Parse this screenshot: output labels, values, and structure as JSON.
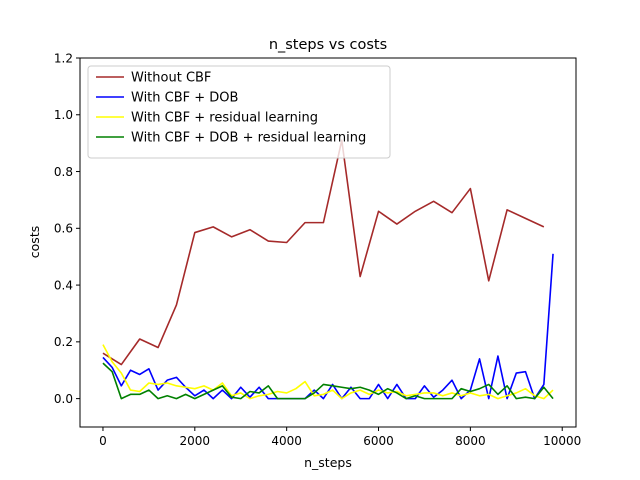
{
  "chart_data": {
    "type": "line",
    "title": "n_steps vs costs",
    "xlabel": "n_steps",
    "ylabel": "costs",
    "xlim": [
      -500,
      10300
    ],
    "ylim": [
      -0.1,
      1.2
    ],
    "xticks": [
      0,
      2000,
      4000,
      6000,
      8000,
      10000
    ],
    "xtick_labels": [
      "0",
      "2000",
      "4000",
      "6000",
      "8000",
      "10000"
    ],
    "yticks": [
      0.0,
      0.2,
      0.4,
      0.6,
      0.8,
      1.0,
      1.2
    ],
    "ytick_labels": [
      "0.0",
      "0.2",
      "0.4",
      "0.6",
      "0.8",
      "1.0",
      "1.2"
    ],
    "grid": false,
    "legend_position": "top-left",
    "series": [
      {
        "name": "Without CBF",
        "color": "#a52a2a",
        "x": [
          0,
          400,
          800,
          1200,
          1600,
          2000,
          2400,
          2800,
          3200,
          3600,
          4000,
          4400,
          4800,
          5200,
          5600,
          6000,
          6400,
          6800,
          7200,
          7600,
          8000,
          8400,
          8800,
          9200,
          9600
        ],
        "y": [
          0.16,
          0.12,
          0.21,
          0.18,
          0.33,
          0.585,
          0.605,
          0.57,
          0.595,
          0.555,
          0.55,
          0.62,
          0.62,
          0.91,
          0.43,
          0.66,
          0.615,
          0.66,
          0.695,
          0.655,
          0.74,
          0.415,
          0.665,
          0.635,
          0.605
        ]
      },
      {
        "name": "With CBF + DOB",
        "color": "#0000ff",
        "x": [
          0,
          200,
          400,
          600,
          800,
          1000,
          1200,
          1400,
          1600,
          1800,
          2000,
          2200,
          2400,
          2600,
          2800,
          3000,
          3200,
          3400,
          3600,
          3800,
          4000,
          4200,
          4400,
          4600,
          4800,
          5000,
          5200,
          5400,
          5600,
          5800,
          6000,
          6200,
          6400,
          6600,
          6800,
          7000,
          7200,
          7400,
          7600,
          7800,
          8000,
          8200,
          8400,
          8600,
          8800,
          9000,
          9200,
          9400,
          9600,
          9800
        ],
        "y": [
          0.145,
          0.11,
          0.045,
          0.1,
          0.085,
          0.105,
          0.03,
          0.065,
          0.075,
          0.04,
          0.01,
          0.03,
          0.0,
          0.03,
          0.0,
          0.04,
          0.005,
          0.04,
          0.0,
          0.0,
          0.0,
          0.0,
          0.0,
          0.03,
          0.0,
          0.05,
          0.0,
          0.04,
          0.0,
          0.0,
          0.05,
          0.0,
          0.05,
          0.0,
          0.0,
          0.045,
          0.005,
          0.03,
          0.065,
          0.0,
          0.03,
          0.14,
          0.0,
          0.15,
          0.0,
          0.09,
          0.095,
          0.0,
          0.05,
          0.51
        ]
      },
      {
        "name": "With CBF + residual learning",
        "color": "#ffff00",
        "x": [
          0,
          200,
          400,
          600,
          800,
          1000,
          1200,
          1400,
          1600,
          1800,
          2000,
          2200,
          2400,
          2600,
          2800,
          3000,
          3200,
          3400,
          3600,
          3800,
          4000,
          4200,
          4400,
          4600,
          4800,
          5000,
          5200,
          5400,
          5600,
          5800,
          6000,
          6200,
          6400,
          6600,
          6800,
          7000,
          7200,
          7400,
          7600,
          7800,
          8000,
          8200,
          8400,
          8600,
          8800,
          9000,
          9200,
          9400,
          9600,
          9800
        ],
        "y": [
          0.19,
          0.13,
          0.09,
          0.03,
          0.025,
          0.055,
          0.05,
          0.055,
          0.045,
          0.04,
          0.035,
          0.045,
          0.03,
          0.055,
          0.01,
          0.02,
          0.0,
          0.01,
          0.015,
          0.025,
          0.02,
          0.035,
          0.06,
          0.01,
          0.015,
          0.03,
          0.0,
          0.02,
          0.03,
          0.015,
          0.03,
          0.02,
          0.025,
          0.01,
          0.015,
          0.02,
          0.02,
          0.01,
          0.02,
          0.01,
          0.02,
          0.01,
          0.015,
          0.0,
          0.01,
          0.02,
          0.035,
          0.01,
          0.0,
          0.03
        ]
      },
      {
        "name": "With CBF + DOB + residual learning",
        "color": "#008000",
        "x": [
          0,
          200,
          400,
          600,
          800,
          1000,
          1200,
          1400,
          1600,
          1800,
          2000,
          2200,
          2400,
          2600,
          2800,
          3000,
          3200,
          3400,
          3600,
          3800,
          4000,
          4200,
          4400,
          4600,
          4800,
          5000,
          5200,
          5400,
          5600,
          5800,
          6000,
          6200,
          6400,
          6600,
          6800,
          7000,
          7200,
          7400,
          7600,
          7800,
          8000,
          8200,
          8400,
          8600,
          8800,
          9000,
          9200,
          9400,
          9600,
          9800
        ],
        "y": [
          0.125,
          0.095,
          0.0,
          0.015,
          0.015,
          0.03,
          0.0,
          0.01,
          0.0,
          0.015,
          0.0,
          0.015,
          0.03,
          0.045,
          0.005,
          0.0,
          0.025,
          0.02,
          0.045,
          0.0,
          0.0,
          0.0,
          0.0,
          0.02,
          0.05,
          0.045,
          0.04,
          0.035,
          0.04,
          0.03,
          0.015,
          0.035,
          0.02,
          0.0,
          0.01,
          0.0,
          0.0,
          0.0,
          0.0,
          0.035,
          0.025,
          0.035,
          0.05,
          0.015,
          0.045,
          0.0,
          0.005,
          0.0,
          0.04,
          0.0
        ]
      }
    ]
  }
}
